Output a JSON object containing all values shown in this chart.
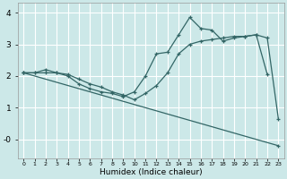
{
  "xlabel": "Humidex (Indice chaleur)",
  "background_color": "#cce8e8",
  "line_color": "#336666",
  "grid_color": "#ffffff",
  "xlim": [
    -0.5,
    23.5
  ],
  "ylim": [
    -0.6,
    4.3
  ],
  "line1_x": [
    0,
    1,
    2,
    3,
    4,
    5,
    6,
    7,
    8,
    9,
    10,
    11,
    12,
    13,
    14,
    15,
    16,
    17,
    18,
    19,
    20,
    21,
    22
  ],
  "line1_y": [
    2.1,
    2.1,
    2.2,
    2.1,
    2.0,
    1.75,
    1.6,
    1.5,
    1.45,
    1.35,
    1.5,
    2.0,
    2.7,
    2.75,
    3.3,
    3.85,
    3.5,
    3.45,
    3.1,
    3.2,
    3.25,
    3.3,
    2.05
  ],
  "line2_x": [
    0,
    1,
    2,
    3,
    4,
    5,
    6,
    7,
    8,
    9,
    10,
    11,
    12,
    13,
    14,
    15,
    16,
    17,
    18,
    19,
    20,
    21,
    22,
    23
  ],
  "line2_y": [
    2.1,
    2.1,
    2.1,
    2.1,
    2.05,
    1.9,
    1.75,
    1.65,
    1.5,
    1.4,
    1.25,
    1.45,
    1.7,
    2.1,
    2.7,
    3.0,
    3.1,
    3.15,
    3.2,
    3.25,
    3.25,
    3.3,
    3.2,
    0.65
  ],
  "line3_x": [
    0,
    23
  ],
  "line3_y": [
    2.1,
    -0.2
  ]
}
